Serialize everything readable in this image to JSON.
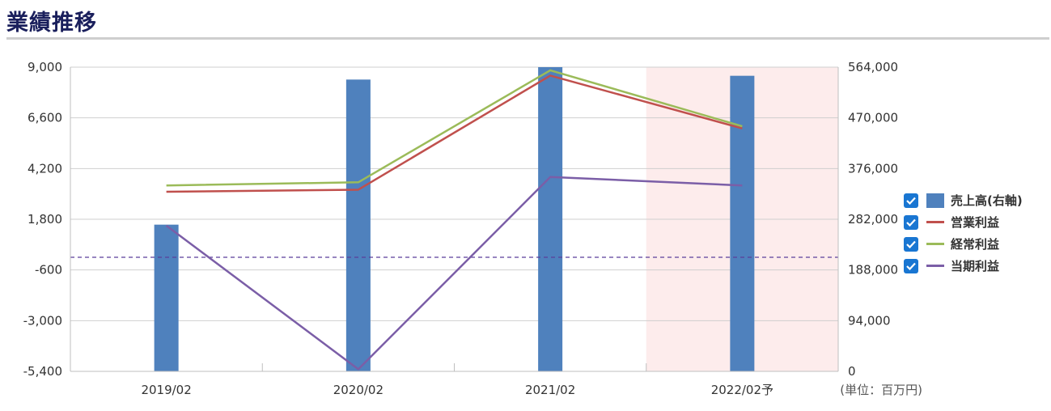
{
  "page_title": "業績推移",
  "chart_data": {
    "type": "bar",
    "categories": [
      "2019/02",
      "2020/02",
      "2021/02",
      "2022/02予"
    ],
    "forecast_index": 3,
    "forecast_shade_color": "#fdecec",
    "left_axis": {
      "range": [
        -5400,
        9000
      ],
      "ticks": [
        9000,
        6600,
        4200,
        1800,
        -600,
        -3000,
        -5400
      ],
      "tick_labels": [
        "9,000",
        "6,600",
        "4,200",
        "1,800",
        "-600",
        "-3,000",
        "-5,400"
      ]
    },
    "right_axis": {
      "range": [
        0,
        564000
      ],
      "ticks": [
        564000,
        470000,
        376000,
        282000,
        188000,
        94000,
        0
      ],
      "tick_labels": [
        "564,000",
        "470,000",
        "376,000",
        "282,000",
        "188,000",
        "94,000",
        "0"
      ]
    },
    "zero_line": {
      "value": 0,
      "style": "dashed",
      "color": "#5b3f9a"
    },
    "series": [
      {
        "name": "売上高(右軸)",
        "type": "bar",
        "axis": "right",
        "color": "#4f81bd",
        "values": [
          272000,
          541000,
          564000,
          548000
        ]
      },
      {
        "name": "営業利益",
        "type": "line",
        "axis": "left",
        "color": "#c0504d",
        "values": [
          3100,
          3200,
          8600,
          6100
        ]
      },
      {
        "name": "経常利益",
        "type": "line",
        "axis": "left",
        "color": "#9bbb59",
        "values": [
          3400,
          3550,
          8850,
          6200
        ]
      },
      {
        "name": "当期利益",
        "type": "line",
        "axis": "left",
        "color": "#7b5ea7",
        "values": [
          1500,
          -5300,
          3800,
          3400
        ]
      }
    ],
    "unit_label": "(単位：百万円)",
    "grid": true,
    "legend_position": "right"
  }
}
